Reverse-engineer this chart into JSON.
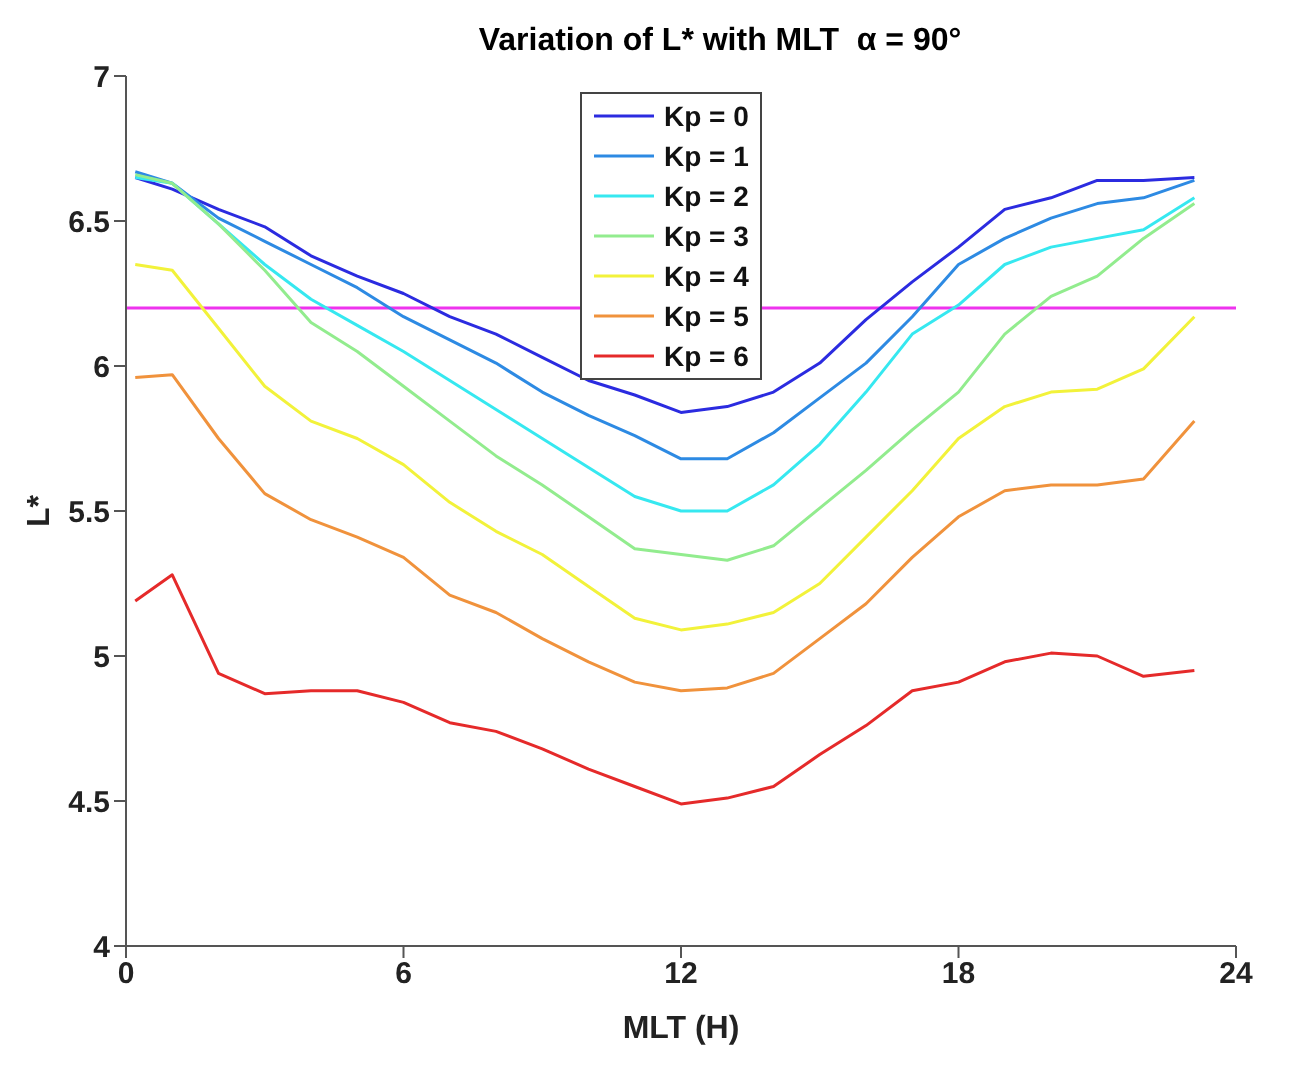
{
  "chart_data": {
    "type": "line",
    "title": "Variation of L* with MLT  α = 90°",
    "xlabel": "MLT (H)",
    "ylabel": "L*",
    "x": [
      0.2,
      1,
      2,
      3,
      4,
      5,
      6,
      7,
      8,
      9,
      10,
      11,
      12,
      13,
      14,
      15,
      16,
      17,
      18,
      19,
      20,
      21,
      22,
      23.1
    ],
    "series": [
      {
        "name": "Kp = 0",
        "color": "#2b2be0",
        "values": [
          6.65,
          6.61,
          6.54,
          6.48,
          6.38,
          6.31,
          6.25,
          6.17,
          6.11,
          6.03,
          5.95,
          5.9,
          5.84,
          5.86,
          5.91,
          6.01,
          6.16,
          6.29,
          6.41,
          6.54,
          6.58,
          6.64,
          6.64,
          6.65
        ]
      },
      {
        "name": "Kp = 1",
        "color": "#2d8ae3",
        "values": [
          6.67,
          6.63,
          6.51,
          6.43,
          6.35,
          6.27,
          6.17,
          6.09,
          6.01,
          5.91,
          5.83,
          5.76,
          5.68,
          5.68,
          5.77,
          5.89,
          6.01,
          6.17,
          6.35,
          6.44,
          6.51,
          6.56,
          6.58,
          6.64
        ]
      },
      {
        "name": "Kp = 2",
        "color": "#36e8f0",
        "values": [
          6.65,
          6.63,
          6.49,
          6.35,
          6.23,
          6.14,
          6.05,
          5.95,
          5.85,
          5.75,
          5.65,
          5.55,
          5.5,
          5.5,
          5.59,
          5.73,
          5.91,
          6.11,
          6.21,
          6.35,
          6.41,
          6.44,
          6.47,
          6.58
        ]
      },
      {
        "name": "Kp = 3",
        "color": "#92ec8e",
        "values": [
          6.66,
          6.63,
          6.49,
          6.33,
          6.15,
          6.05,
          5.93,
          5.81,
          5.69,
          5.59,
          5.48,
          5.37,
          5.35,
          5.33,
          5.38,
          5.51,
          5.64,
          5.78,
          5.91,
          6.11,
          6.24,
          6.31,
          6.44,
          6.56
        ]
      },
      {
        "name": "Kp = 4",
        "color": "#f2f23a",
        "values": [
          6.35,
          6.33,
          6.13,
          5.93,
          5.81,
          5.75,
          5.66,
          5.53,
          5.43,
          5.35,
          5.24,
          5.13,
          5.09,
          5.11,
          5.15,
          5.25,
          5.41,
          5.57,
          5.75,
          5.86,
          5.91,
          5.92,
          5.99,
          6.17
        ]
      },
      {
        "name": "Kp = 5",
        "color": "#f0923c",
        "values": [
          5.96,
          5.97,
          5.75,
          5.56,
          5.47,
          5.41,
          5.34,
          5.21,
          5.15,
          5.06,
          4.98,
          4.91,
          4.88,
          4.89,
          4.94,
          5.06,
          5.18,
          5.34,
          5.48,
          5.57,
          5.59,
          5.59,
          5.61,
          5.81
        ]
      },
      {
        "name": "Kp = 6",
        "color": "#e52a2a",
        "values": [
          5.19,
          5.28,
          4.94,
          4.87,
          4.88,
          4.88,
          4.84,
          4.77,
          4.74,
          4.68,
          4.61,
          4.55,
          4.49,
          4.51,
          4.55,
          4.66,
          4.76,
          4.88,
          4.91,
          4.98,
          5.01,
          5,
          4.93,
          4.95
        ]
      }
    ],
    "xlim": [
      0,
      24
    ],
    "xticks": [
      0,
      6,
      12,
      18,
      24
    ],
    "ylim": [
      4,
      7
    ],
    "yticks": [
      4,
      4.5,
      5,
      5.5,
      6,
      6.5,
      7
    ],
    "ref_lines": [
      {
        "axis": "y",
        "value": 6.2,
        "color": "#ee33ee"
      }
    ],
    "legend": "top"
  }
}
